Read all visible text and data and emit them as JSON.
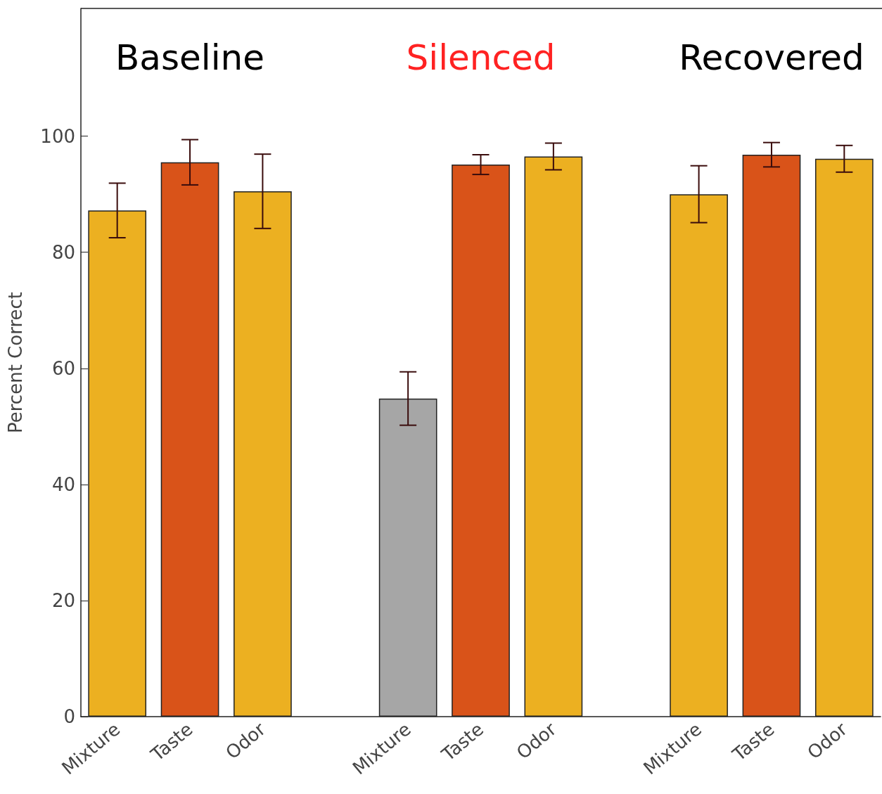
{
  "chart_data": {
    "type": "bar",
    "ylabel": "Percent Correct",
    "categories": [
      "Mixture",
      "Taste",
      "Odor",
      null,
      "Mixture",
      "Taste",
      "Odor",
      null,
      "Mixture",
      "Taste",
      "Odor"
    ],
    "values": [
      87.2,
      95.5,
      90.5,
      null,
      54.8,
      95.1,
      96.5,
      null,
      90.0,
      96.8,
      96.1
    ],
    "colors": [
      "#ecb021",
      "#d95319",
      "#ecb021",
      null,
      "#a6a6a6",
      "#d95319",
      "#ecb021",
      null,
      "#ecb021",
      "#d95319",
      "#ecb021"
    ],
    "errors": [
      4.7,
      3.9,
      6.4,
      null,
      4.6,
      1.7,
      2.3,
      null,
      4.9,
      2.1,
      2.3
    ],
    "annotations": [
      "Baseline",
      "Silenced",
      "Recovered"
    ],
    "ylim": [
      0,
      122
    ],
    "yticks": [
      0,
      20,
      40,
      60,
      80,
      100
    ],
    "grid": false
  }
}
